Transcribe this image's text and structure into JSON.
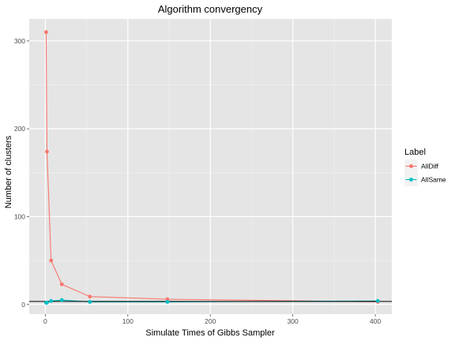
{
  "chart_data": {
    "type": "line",
    "title": "Algorithm convergency",
    "xlabel": "Simulate Times of Gibbs Sampler",
    "ylabel": "Number of clusters",
    "xlim": [
      -19.5,
      420
    ],
    "ylim": [
      -11,
      325
    ],
    "x_ticks": [
      0,
      100,
      200,
      300,
      400
    ],
    "y_ticks": [
      0,
      100,
      200,
      300
    ],
    "legend": {
      "title": "Label",
      "placement": "right"
    },
    "hline": 3.5,
    "grid": true,
    "series": [
      {
        "name": "AllDiff",
        "color": "#F8766D",
        "x": [
          1,
          2,
          7,
          20,
          54,
          148,
          403
        ],
        "y": [
          310,
          174,
          50,
          23,
          9,
          6,
          3
        ]
      },
      {
        "name": "AllSame",
        "color": "#00BFC4",
        "x": [
          1,
          2,
          7,
          20,
          54,
          148,
          403
        ],
        "y": [
          2,
          2,
          4,
          5,
          3,
          3,
          4
        ]
      }
    ]
  }
}
